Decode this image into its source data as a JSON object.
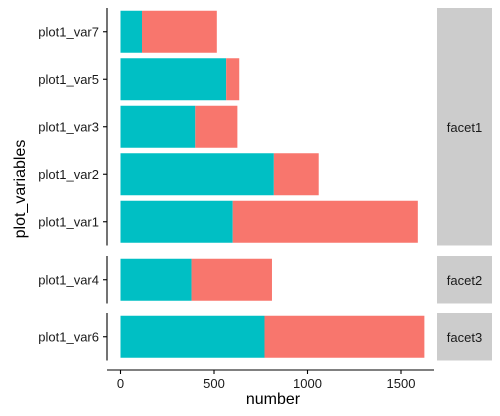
{
  "chart_data": {
    "type": "bar",
    "orientation": "horizontal",
    "stacked": true,
    "xlabel": "number",
    "ylabel": "plot_variables",
    "xlim": [
      0,
      1650
    ],
    "x_ticks": [
      0,
      500,
      1000,
      1500
    ],
    "x_tick_labels": [
      "0",
      "500",
      "1000",
      "1500"
    ],
    "grid": false,
    "legend": "none",
    "colors": {
      "teal": "#00BFC4",
      "salmon": "#F8766D",
      "strip": "#CCCCCC",
      "axis": "#000000"
    },
    "facets": [
      {
        "label": "facet1",
        "bars": [
          {
            "category": "plot1_var1",
            "teal": 600,
            "total": 1590
          },
          {
            "category": "plot1_var2",
            "teal": 820,
            "total": 1060
          },
          {
            "category": "plot1_var3",
            "teal": 400,
            "total": 625
          },
          {
            "category": "plot1_var5",
            "teal": 565,
            "total": 635
          },
          {
            "category": "plot1_var7",
            "teal": 115,
            "total": 515
          }
        ]
      },
      {
        "label": "facet2",
        "bars": [
          {
            "category": "plot1_var4",
            "teal": 380,
            "total": 810
          }
        ]
      },
      {
        "label": "facet3",
        "bars": [
          {
            "category": "plot1_var6",
            "teal": 770,
            "total": 1625
          }
        ]
      }
    ]
  }
}
